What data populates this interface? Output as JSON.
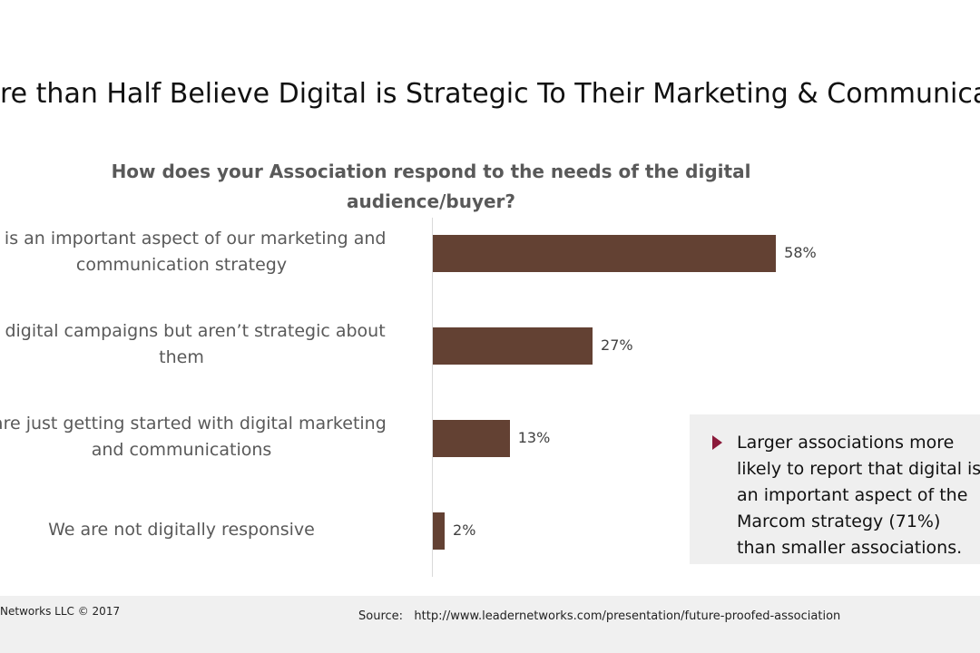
{
  "header": {
    "title": "re than Half Believe Digital is Strategic To Their Marketing & Communicatio"
  },
  "chart_data": {
    "type": "bar",
    "orientation": "horizontal",
    "title": "How does your Association respond to the needs of the digital\naudience/buyer?",
    "categories": [
      "tal is an important aspect of our marketing and\ncommunication strategy",
      "un digital campaigns but aren’t strategic about\nthem",
      "e are just getting started with digital marketing\nand communications",
      "We are not digitally responsive"
    ],
    "values": [
      58,
      27,
      13,
      2
    ],
    "value_labels": [
      "58%",
      "27%",
      "13%",
      "2%"
    ],
    "color": "#634133"
  },
  "callout": {
    "text": "Larger associations more likely to report that digital is an important aspect of the Marcom strategy (71%) than smaller associations."
  },
  "footer": {
    "copyright": "Networks LLC © 2017",
    "source": "Source:   http://www.leadernetworks.com/presentation/future-proofed-association"
  }
}
